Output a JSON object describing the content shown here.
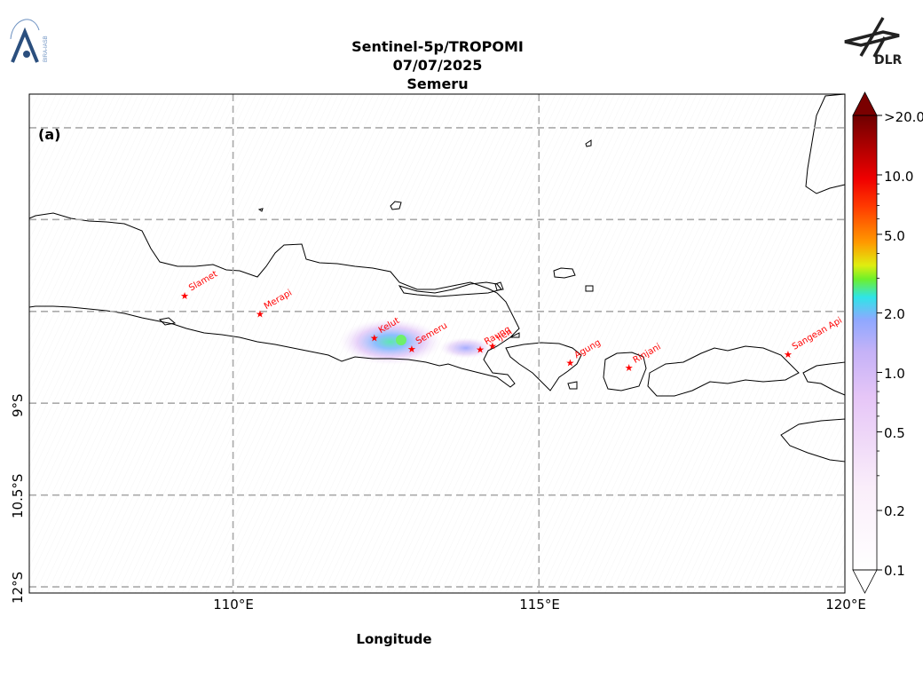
{
  "header": {
    "line1": "Sentinel-5p/TROPOMI",
    "line2": "07/07/2025",
    "line3": "Semeru"
  },
  "logos": {
    "left": "BIRA-IASB",
    "right": "DLR"
  },
  "map": {
    "panel_label": "(a)",
    "xlabel": "Longitude",
    "x_ticks": [
      "110°E",
      "115°E",
      "120°E"
    ],
    "y_ticks": [
      "9°S",
      "10.5°S",
      "12°S"
    ],
    "extent": {
      "lon": [
        106.67,
        120.0
      ],
      "lat": [
        -12.1,
        -3.95
      ]
    },
    "grid_lons": [
      110,
      115
    ],
    "grid_lats": [
      -4.5,
      -6.0,
      -7.5,
      -9.0,
      -10.5,
      -12.0
    ],
    "grid": true
  },
  "colorbar": {
    "ticks": [
      ">20.0",
      "10.0",
      "5.0",
      "2.0",
      "1.0",
      "0.5",
      "0.2",
      "0.1"
    ],
    "colors": [
      "#ffffff",
      "#f3d9f7",
      "#d5aef5",
      "#9da6ff",
      "#2de8e0",
      "#6ef02a",
      "#e6ee10",
      "#ff9a00",
      "#ff3000",
      "#e00000",
      "#a00000",
      "#7a0000"
    ],
    "scale": "log"
  },
  "volcanoes": [
    {
      "name": "Slamet",
      "lon": 109.21,
      "lat": -7.24
    },
    {
      "name": "Merapi",
      "lon": 110.44,
      "lat": -7.54
    },
    {
      "name": "Kelut",
      "lon": 112.31,
      "lat": -7.93
    },
    {
      "name": "Semeru",
      "lon": 112.92,
      "lat": -8.11
    },
    {
      "name": "Raung",
      "lon": 114.04,
      "lat": -8.12
    },
    {
      "name": "Ijen",
      "lon": 114.24,
      "lat": -8.06
    },
    {
      "name": "Agung",
      "lon": 115.51,
      "lat": -8.34
    },
    {
      "name": "Rinjani",
      "lon": 116.47,
      "lat": -8.42
    },
    {
      "name": "Sangean Api",
      "lon": 119.07,
      "lat": -8.2
    }
  ]
}
